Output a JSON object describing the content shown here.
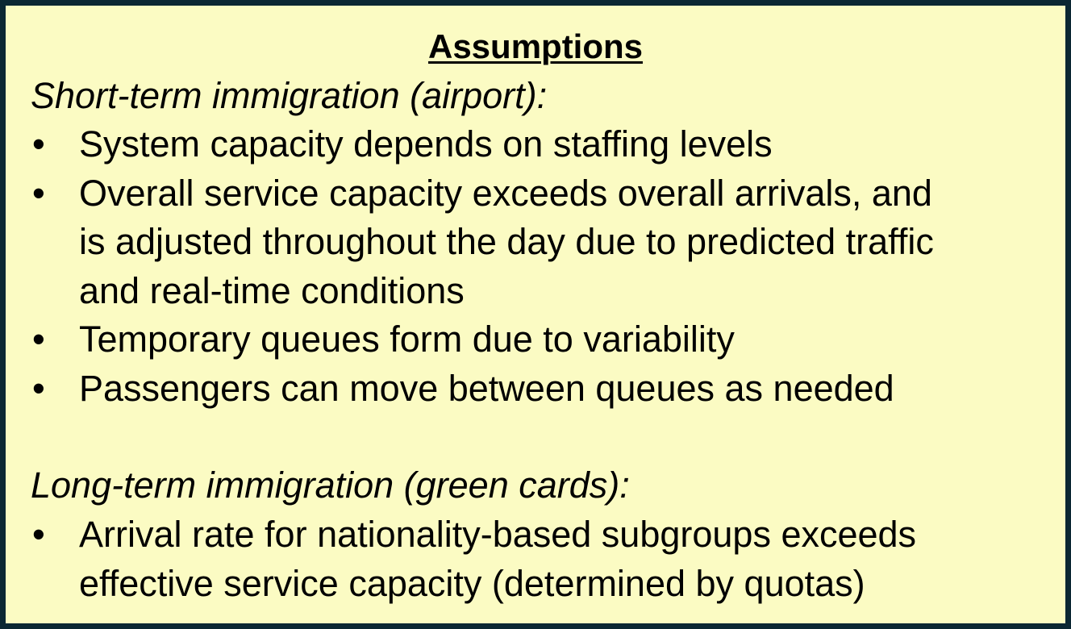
{
  "title": "Assumptions",
  "sections": [
    {
      "heading": "Short-term immigration (airport):",
      "bullet_symbol": "•",
      "items": [
        [
          "System capacity depends on staffing levels"
        ],
        [
          "Overall service capacity exceeds overall arrivals, and",
          "is adjusted throughout the day due to predicted traffic",
          "and real-time conditions"
        ],
        [
          "Temporary queues form due to variability"
        ],
        [
          "Passengers can move between queues as needed"
        ]
      ]
    },
    {
      "heading": "Long-term immigration (green cards):",
      "bullet_symbol": "•",
      "items": [
        [
          "Arrival rate for nationality-based subgroups exceeds",
          "effective service capacity (determined by quotas)"
        ]
      ]
    }
  ]
}
